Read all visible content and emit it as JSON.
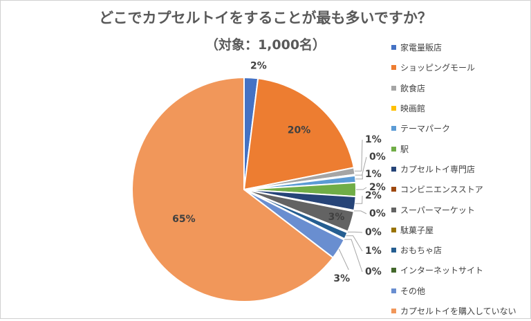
{
  "chart_data": {
    "type": "pie",
    "title": "どこでカプセルトイをすることが最も多いですか？",
    "subtitle": "（対象：1,000名）",
    "legend_position": "right",
    "categories": [
      "家電量販店",
      "ショッピングモール",
      "飲食店",
      "映画館",
      "テーマパーク",
      "駅",
      "カプセルトイ専門店",
      "コンビニエンスストア",
      "スーパーマーケット",
      "駄菓子屋",
      "おもちゃ店",
      "インターネットサイト",
      "その他",
      "カプセルトイを購入していない"
    ],
    "values": [
      2,
      20,
      1,
      0,
      1,
      2,
      2,
      0,
      3,
      0,
      1,
      0,
      3,
      65
    ],
    "labels": [
      "2%",
      "20%",
      "1%",
      "0%",
      "1%",
      "2%",
      "2%",
      "0%",
      "3%",
      "0%",
      "1%",
      "0%",
      "3%",
      "65%"
    ],
    "colors": [
      "#4472C4",
      "#ED7D31",
      "#A5A5A5",
      "#FFC000",
      "#5B9BD5",
      "#70AD47",
      "#264478",
      "#9E480E",
      "#636363",
      "#997300",
      "#255E91",
      "#43682B",
      "#698ED0",
      "#F1975A"
    ]
  }
}
